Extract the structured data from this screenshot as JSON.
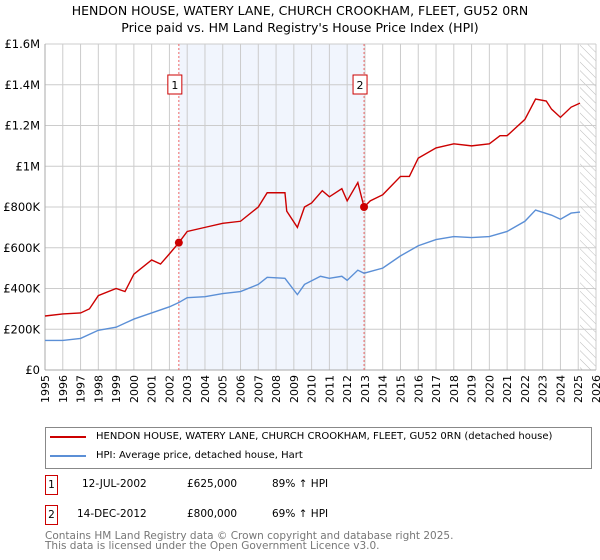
{
  "chart_data": {
    "type": "line",
    "title": "HENDON HOUSE, WATERY LANE, CHURCH CROOKHAM, FLEET, GU52 0RN",
    "subtitle": "Price paid vs. HM Land Registry's House Price Index (HPI)",
    "xlim": [
      1995,
      2026
    ],
    "ylim": [
      0,
      1600000
    ],
    "x_ticks": [
      "1995",
      "1996",
      "1997",
      "1998",
      "1999",
      "2000",
      "2001",
      "2002",
      "2003",
      "2004",
      "2005",
      "2006",
      "2007",
      "2008",
      "2009",
      "2010",
      "2011",
      "2012",
      "2013",
      "2014",
      "2015",
      "2016",
      "2017",
      "2018",
      "2019",
      "2020",
      "2021",
      "2022",
      "2023",
      "2024",
      "2025",
      "2026"
    ],
    "y_ticks": [
      {
        "v": 0,
        "label": "£0"
      },
      {
        "v": 200000,
        "label": "£200K"
      },
      {
        "v": 400000,
        "label": "£400K"
      },
      {
        "v": 600000,
        "label": "£600K"
      },
      {
        "v": 800000,
        "label": "£800K"
      },
      {
        "v": 1000000,
        "label": "£1M"
      },
      {
        "v": 1200000,
        "label": "£1.2M"
      },
      {
        "v": 1400000,
        "label": "£1.4M"
      },
      {
        "v": 1600000,
        "label": "£1.6M"
      }
    ],
    "grid": true,
    "shaded_range": [
      2002.53,
      2012.95
    ],
    "hatched_from": 2025.1,
    "series": [
      {
        "name": "HENDON HOUSE, WATERY LANE, CHURCH CROOKHAM, FLEET, GU52 0RN (detached house)",
        "color": "#cc0000",
        "x": [
          1995,
          1996,
          1997,
          1997.5,
          1998,
          1999,
          1999.5,
          2000,
          2001,
          2001.5,
          2002,
          2002.53,
          2003,
          2004,
          2005,
          2006,
          2007,
          2007.5,
          2008.5,
          2008.6,
          2009.2,
          2009.6,
          2010,
          2010.6,
          2011,
          2011.7,
          2012,
          2012.6,
          2012.95,
          2013.3,
          2014,
          2015,
          2015.5,
          2016,
          2017,
          2018,
          2019,
          2020,
          2020.6,
          2021,
          2022,
          2022.6,
          2023.2,
          2023.5,
          2024,
          2024.6,
          2025.1
        ],
        "y": [
          265000,
          275000,
          280000,
          300000,
          365000,
          400000,
          385000,
          470000,
          540000,
          520000,
          570000,
          625000,
          680000,
          700000,
          720000,
          730000,
          800000,
          870000,
          870000,
          780000,
          700000,
          800000,
          820000,
          880000,
          850000,
          890000,
          830000,
          920000,
          800000,
          830000,
          860000,
          950000,
          950000,
          1040000,
          1090000,
          1110000,
          1100000,
          1110000,
          1150000,
          1150000,
          1230000,
          1330000,
          1320000,
          1280000,
          1240000,
          1290000,
          1310000
        ]
      },
      {
        "name": "HPI: Average price, detached house, Hart",
        "color": "#5b8fd6",
        "x": [
          1995,
          1996,
          1997,
          1998,
          1999,
          2000,
          2001,
          2002,
          2002.53,
          2003,
          2004,
          2005,
          2006,
          2007,
          2007.5,
          2008.5,
          2009.2,
          2009.6,
          2010.5,
          2011,
          2011.7,
          2012,
          2012.6,
          2012.95,
          2014,
          2015,
          2016,
          2017,
          2018,
          2019,
          2020,
          2021,
          2022,
          2022.6,
          2023.5,
          2024,
          2024.6,
          2025.1
        ],
        "y": [
          145000,
          145000,
          155000,
          195000,
          210000,
          250000,
          280000,
          310000,
          331000,
          355000,
          360000,
          375000,
          385000,
          420000,
          455000,
          450000,
          370000,
          420000,
          460000,
          450000,
          460000,
          440000,
          490000,
          475000,
          500000,
          560000,
          610000,
          640000,
          655000,
          650000,
          655000,
          680000,
          730000,
          785000,
          760000,
          740000,
          770000,
          775000
        ]
      }
    ],
    "markers": [
      {
        "id": "1",
        "x": 2002.53,
        "y": 625000
      },
      {
        "id": "2",
        "x": 2012.95,
        "y": 800000
      }
    ]
  },
  "legend": {
    "red": "HENDON HOUSE, WATERY LANE, CHURCH CROOKHAM, FLEET, GU52 0RN (detached house)",
    "blue": "HPI: Average price, detached house, Hart"
  },
  "transactions": [
    {
      "id": "1",
      "date": "12-JUL-2002",
      "price": "£625,000",
      "hpi": "89% ↑ HPI"
    },
    {
      "id": "2",
      "date": "14-DEC-2012",
      "price": "£800,000",
      "hpi": "69% ↑ HPI"
    }
  ],
  "footer": {
    "line1": "Contains HM Land Registry data © Crown copyright and database right 2025.",
    "line2": "This data is licensed under the Open Government Licence v3.0."
  }
}
